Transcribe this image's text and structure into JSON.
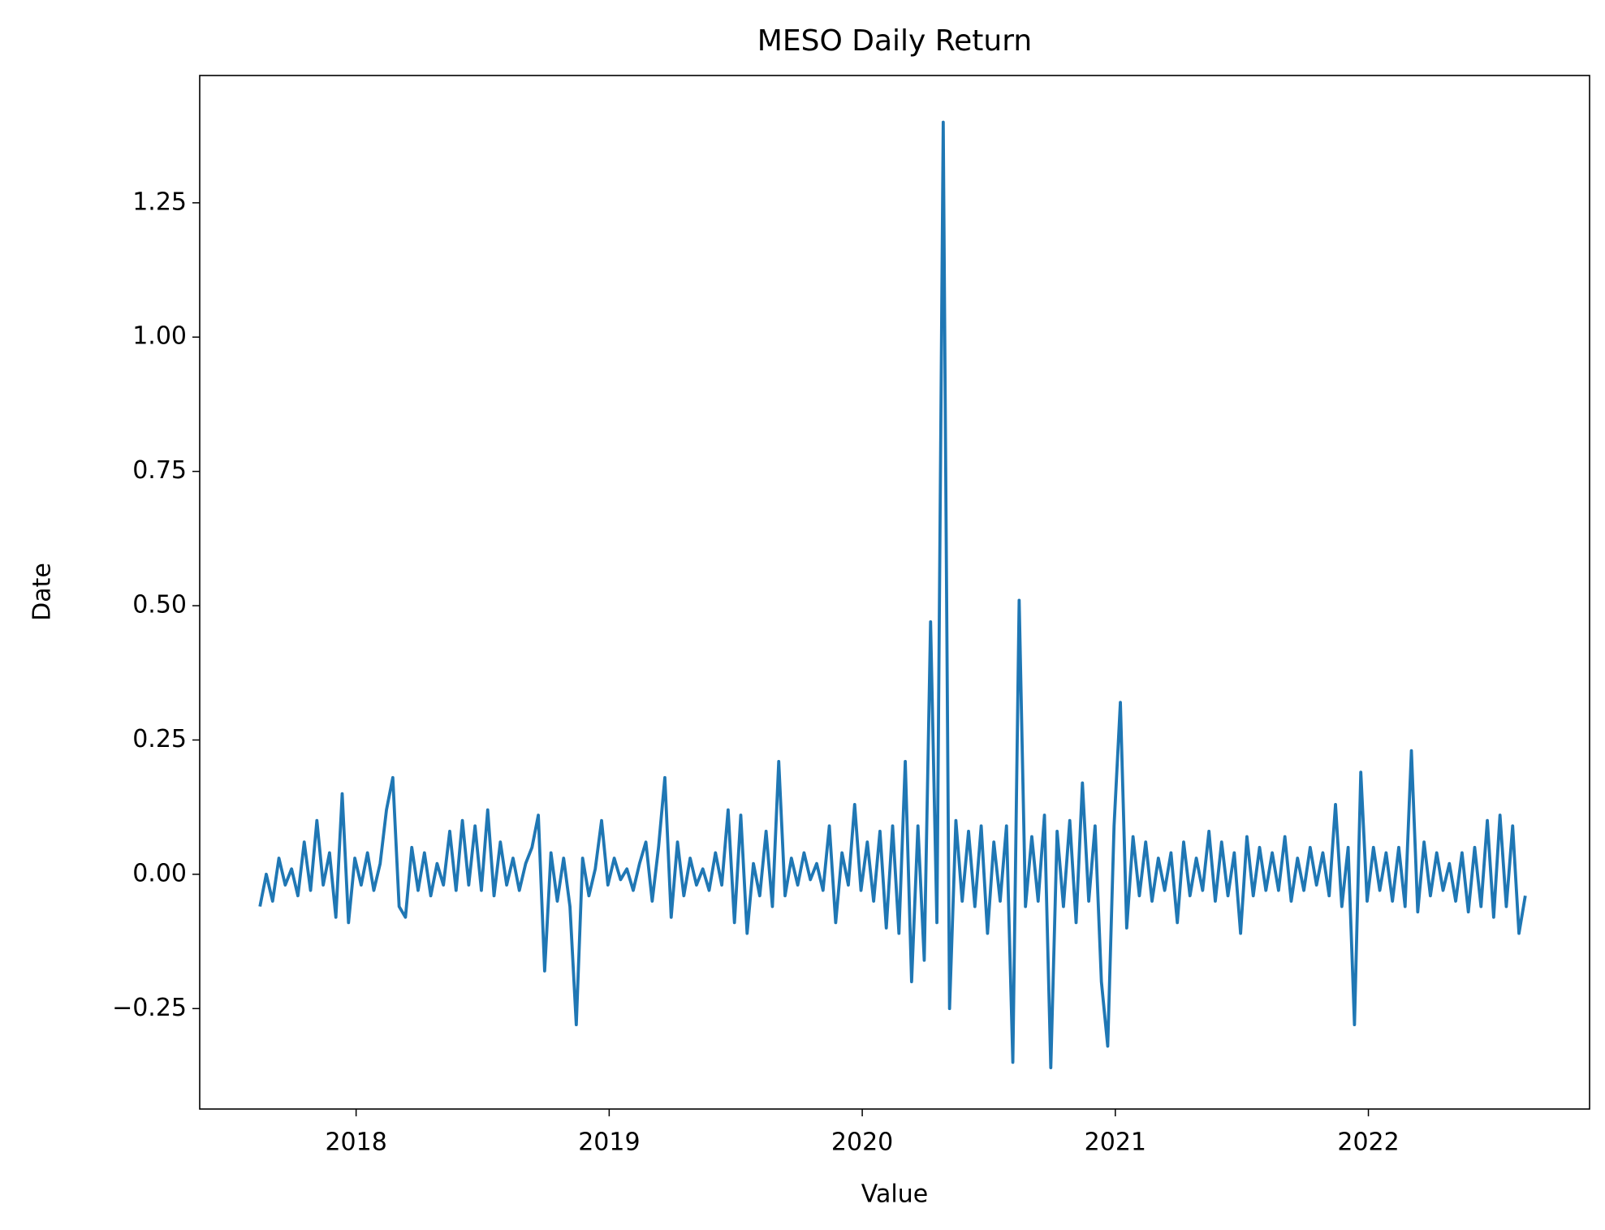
{
  "chart_data": {
    "type": "line",
    "title": "MESO Daily Return",
    "x_label": "Value",
    "y_label": "Date",
    "x": [
      2017.62,
      2017.645,
      2017.67,
      2017.695,
      2017.72,
      2017.745,
      2017.77,
      2017.795,
      2017.82,
      2017.845,
      2017.87,
      2017.895,
      2017.92,
      2017.945,
      2017.97,
      2017.995,
      2018.02,
      2018.045,
      2018.07,
      2018.095,
      2018.12,
      2018.145,
      2018.17,
      2018.195,
      2018.22,
      2018.245,
      2018.27,
      2018.295,
      2018.32,
      2018.345,
      2018.37,
      2018.395,
      2018.42,
      2018.445,
      2018.47,
      2018.495,
      2018.52,
      2018.545,
      2018.57,
      2018.595,
      2018.62,
      2018.645,
      2018.67,
      2018.695,
      2018.72,
      2018.745,
      2018.77,
      2018.795,
      2018.82,
      2018.845,
      2018.87,
      2018.895,
      2018.92,
      2018.945,
      2018.97,
      2018.995,
      2019.02,
      2019.045,
      2019.07,
      2019.095,
      2019.12,
      2019.145,
      2019.17,
      2019.195,
      2019.22,
      2019.245,
      2019.27,
      2019.295,
      2019.32,
      2019.345,
      2019.37,
      2019.395,
      2019.42,
      2019.445,
      2019.47,
      2019.495,
      2019.52,
      2019.545,
      2019.57,
      2019.595,
      2019.62,
      2019.645,
      2019.67,
      2019.695,
      2019.72,
      2019.745,
      2019.77,
      2019.795,
      2019.82,
      2019.845,
      2019.87,
      2019.895,
      2019.92,
      2019.945,
      2019.97,
      2019.995,
      2020.02,
      2020.045,
      2020.07,
      2020.095,
      2020.12,
      2020.145,
      2020.17,
      2020.195,
      2020.22,
      2020.245,
      2020.27,
      2020.295,
      2020.32,
      2020.345,
      2020.37,
      2020.395,
      2020.42,
      2020.445,
      2020.47,
      2020.495,
      2020.52,
      2020.545,
      2020.57,
      2020.595,
      2020.62,
      2020.645,
      2020.67,
      2020.695,
      2020.72,
      2020.745,
      2020.77,
      2020.795,
      2020.82,
      2020.845,
      2020.87,
      2020.895,
      2020.92,
      2020.945,
      2020.97,
      2020.995,
      2021.02,
      2021.045,
      2021.07,
      2021.095,
      2021.12,
      2021.145,
      2021.17,
      2021.195,
      2021.22,
      2021.245,
      2021.27,
      2021.295,
      2021.32,
      2021.345,
      2021.37,
      2021.395,
      2021.42,
      2021.445,
      2021.47,
      2021.495,
      2021.52,
      2021.545,
      2021.57,
      2021.595,
      2021.62,
      2021.645,
      2021.67,
      2021.695,
      2021.72,
      2021.745,
      2021.77,
      2021.795,
      2021.82,
      2021.845,
      2021.87,
      2021.895,
      2021.92,
      2021.945,
      2021.97,
      2021.995,
      2022.02,
      2022.045,
      2022.07,
      2022.095,
      2022.12,
      2022.145,
      2022.17,
      2022.195,
      2022.22,
      2022.245,
      2022.27,
      2022.295,
      2022.32,
      2022.345,
      2022.37,
      2022.395,
      2022.42,
      2022.445,
      2022.47,
      2022.495,
      2022.52,
      2022.545,
      2022.57,
      2022.595,
      2022.62
    ],
    "series": [
      {
        "name": "MESO",
        "color": "#1f77b4",
        "values": [
          -0.06,
          0.0,
          -0.05,
          0.03,
          -0.02,
          0.01,
          -0.04,
          0.06,
          -0.03,
          0.1,
          -0.02,
          0.04,
          -0.08,
          0.15,
          -0.09,
          0.03,
          -0.02,
          0.04,
          -0.03,
          0.02,
          0.12,
          0.18,
          -0.06,
          -0.08,
          0.05,
          -0.03,
          0.04,
          -0.04,
          0.02,
          -0.02,
          0.08,
          -0.03,
          0.1,
          -0.02,
          0.09,
          -0.03,
          0.12,
          -0.04,
          0.06,
          -0.02,
          0.03,
          -0.03,
          0.02,
          0.05,
          0.11,
          -0.18,
          0.04,
          -0.05,
          0.03,
          -0.06,
          -0.28,
          0.03,
          -0.04,
          0.01,
          0.1,
          -0.02,
          0.03,
          -0.01,
          0.01,
          -0.03,
          0.02,
          0.06,
          -0.05,
          0.05,
          0.18,
          -0.08,
          0.06,
          -0.04,
          0.03,
          -0.02,
          0.01,
          -0.03,
          0.04,
          -0.02,
          0.12,
          -0.09,
          0.11,
          -0.11,
          0.02,
          -0.04,
          0.08,
          -0.06,
          0.21,
          -0.04,
          0.03,
          -0.02,
          0.04,
          -0.01,
          0.02,
          -0.03,
          0.09,
          -0.09,
          0.04,
          -0.02,
          0.13,
          -0.03,
          0.06,
          -0.05,
          0.08,
          -0.1,
          0.09,
          -0.11,
          0.21,
          -0.2,
          0.09,
          -0.16,
          0.47,
          -0.09,
          1.4,
          -0.25,
          0.1,
          -0.05,
          0.08,
          -0.06,
          0.09,
          -0.11,
          0.06,
          -0.05,
          0.09,
          -0.35,
          0.51,
          -0.06,
          0.07,
          -0.05,
          0.11,
          -0.36,
          0.08,
          -0.06,
          0.1,
          -0.09,
          0.17,
          -0.05,
          0.09,
          -0.2,
          -0.32,
          0.09,
          0.32,
          -0.1,
          0.07,
          -0.04,
          0.06,
          -0.05,
          0.03,
          -0.03,
          0.04,
          -0.09,
          0.06,
          -0.04,
          0.03,
          -0.03,
          0.08,
          -0.05,
          0.06,
          -0.04,
          0.04,
          -0.11,
          0.07,
          -0.04,
          0.05,
          -0.03,
          0.04,
          -0.03,
          0.07,
          -0.05,
          0.03,
          -0.03,
          0.05,
          -0.02,
          0.04,
          -0.04,
          0.13,
          -0.06,
          0.05,
          -0.28,
          0.19,
          -0.05,
          0.05,
          -0.03,
          0.04,
          -0.05,
          0.05,
          -0.06,
          0.23,
          -0.07,
          0.06,
          -0.04,
          0.04,
          -0.03,
          0.02,
          -0.05,
          0.04,
          -0.07,
          0.05,
          -0.06,
          0.1,
          -0.08,
          0.11,
          -0.06,
          0.09,
          -0.11,
          -0.04
        ]
      }
    ],
    "xlim": [
      2017.382,
      2022.874
    ],
    "xticks": [
      2018,
      2019,
      2020,
      2021,
      2022
    ],
    "ylim": [
      -0.437,
      1.487
    ],
    "yticks": [
      {
        "value": -0.25,
        "label": "−0.25"
      },
      {
        "value": 0,
        "label": "0.00"
      },
      0.25,
      {
        "value": 0.5,
        "label": "0.50"
      },
      0.75,
      {
        "value": 1,
        "label": "1.00"
      },
      1.25
    ],
    "grid": false
  }
}
